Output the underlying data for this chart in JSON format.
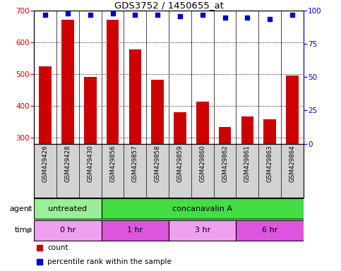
{
  "title": "GDS3752 / 1450655_at",
  "samples": [
    "GSM429426",
    "GSM429428",
    "GSM429430",
    "GSM429856",
    "GSM429857",
    "GSM429858",
    "GSM429859",
    "GSM429860",
    "GSM429862",
    "GSM429861",
    "GSM429863",
    "GSM429864"
  ],
  "counts": [
    525,
    672,
    492,
    672,
    577,
    481,
    380,
    413,
    333,
    365,
    357,
    496
  ],
  "percentile_ranks": [
    97,
    98,
    97,
    98,
    97,
    97,
    96,
    97,
    95,
    95,
    94,
    97
  ],
  "ylim_left": [
    280,
    700
  ],
  "ylim_right": [
    0,
    100
  ],
  "yticks_left": [
    300,
    400,
    500,
    600,
    700
  ],
  "yticks_right": [
    0,
    25,
    50,
    75,
    100
  ],
  "bar_color": "#cc0000",
  "dot_color": "#0000cc",
  "bar_width": 0.55,
  "agent_groups": [
    {
      "label": "untreated",
      "start": 0,
      "end": 3,
      "color": "#99ee99"
    },
    {
      "label": "concanavalin A",
      "start": 3,
      "end": 12,
      "color": "#44dd44"
    }
  ],
  "time_groups": [
    {
      "label": "0 hr",
      "start": 0,
      "end": 3,
      "color": "#f0a0f0"
    },
    {
      "label": "1 hr",
      "start": 3,
      "end": 6,
      "color": "#dd55dd"
    },
    {
      "label": "3 hr",
      "start": 6,
      "end": 9,
      "color": "#f0a0f0"
    },
    {
      "label": "6 hr",
      "start": 9,
      "end": 12,
      "color": "#dd55dd"
    }
  ],
  "legend_count_color": "#cc0000",
  "legend_dot_color": "#0000cc",
  "background_color": "#ffffff",
  "label_bg": "#d3d3d3",
  "axis_left_color": "#cc0000",
  "axis_right_color": "#0000cc"
}
